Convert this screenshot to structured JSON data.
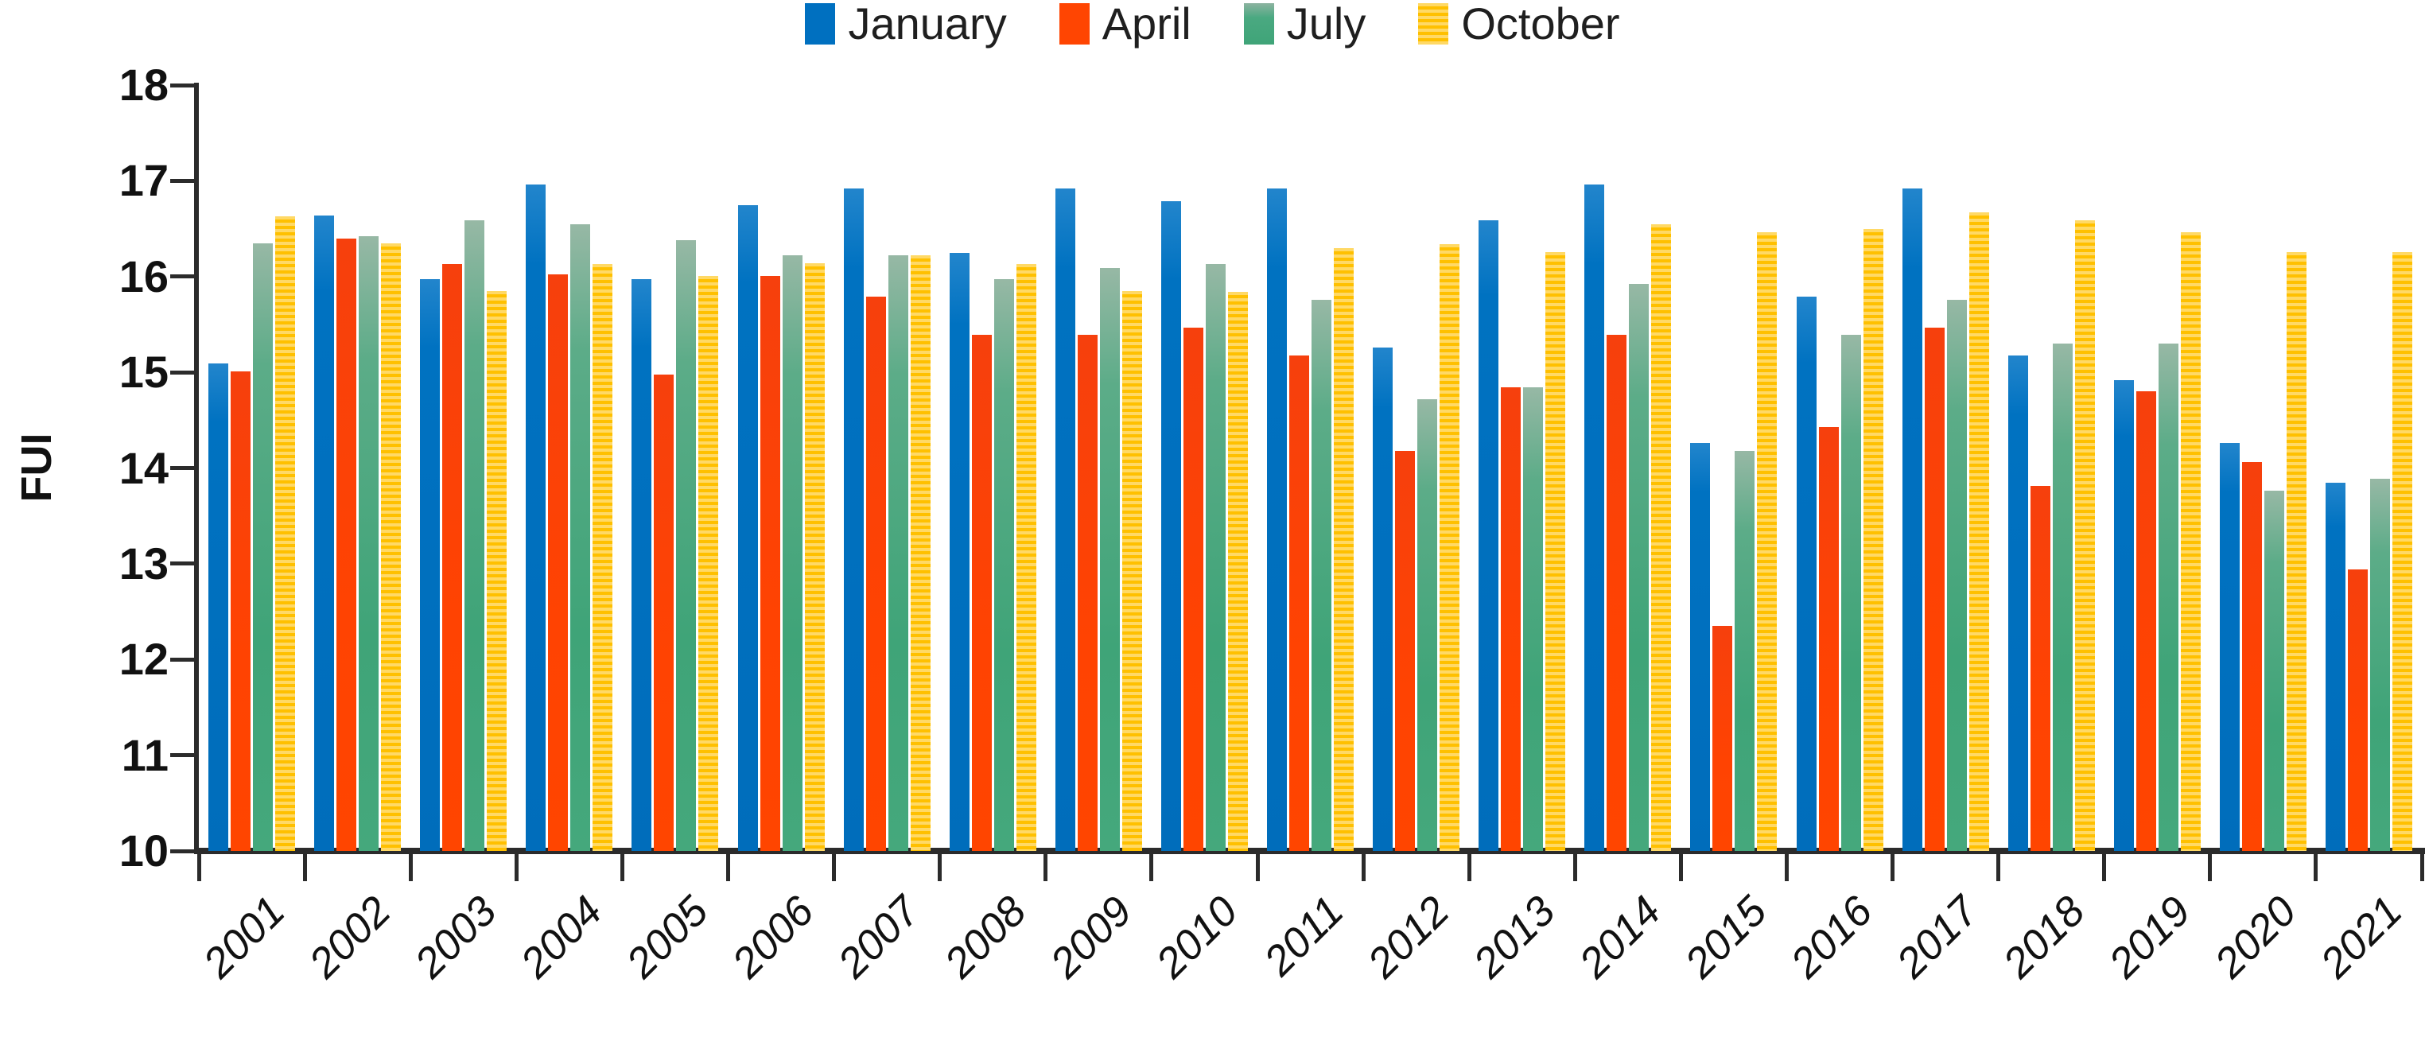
{
  "chart_data": {
    "type": "bar",
    "title": "",
    "xlabel": "",
    "ylabel": "FUI",
    "ylim": [
      10,
      18
    ],
    "ytick_step": 1,
    "yticks": [
      10,
      11,
      12,
      13,
      14,
      15,
      16,
      17,
      18
    ],
    "grid": false,
    "legend_position": "top-center",
    "categories": [
      "2001",
      "2002",
      "2003",
      "2004",
      "2005",
      "2006",
      "2007",
      "2008",
      "2009",
      "2010",
      "2011",
      "2012",
      "2013",
      "2014",
      "2015",
      "2016",
      "2017",
      "2018",
      "2019",
      "2020",
      "2021"
    ],
    "series": [
      {
        "name": "January",
        "color": "#0070C0",
        "pattern": "solid",
        "values": [
          15.09,
          16.64,
          15.97,
          16.96,
          15.97,
          16.75,
          16.92,
          16.25,
          16.92,
          16.79,
          16.92,
          15.26,
          16.59,
          16.96,
          14.26,
          15.79,
          16.92,
          15.18,
          14.92,
          14.26,
          13.85
        ]
      },
      {
        "name": "April",
        "color": "#FF4502",
        "pattern": "solid",
        "values": [
          15.01,
          16.4,
          16.13,
          16.02,
          14.98,
          16.01,
          15.79,
          15.39,
          15.39,
          15.47,
          15.18,
          14.18,
          14.84,
          15.39,
          12.35,
          14.43,
          15.47,
          13.81,
          14.8,
          14.06,
          12.94
        ]
      },
      {
        "name": "July",
        "color": "#44A87C",
        "pattern": "solid-gradient",
        "values": [
          16.35,
          16.42,
          16.59,
          16.55,
          16.38,
          16.22,
          16.22,
          15.97,
          16.09,
          16.13,
          15.76,
          14.72,
          14.84,
          15.92,
          14.18,
          15.39,
          15.76,
          15.3,
          15.3,
          13.76,
          13.89
        ]
      },
      {
        "name": "October",
        "color": "#FFC000",
        "pattern": "horizontal-stripes",
        "stripe_colors": [
          "#FFD966",
          "#FFC000"
        ],
        "values": [
          16.63,
          16.35,
          15.85,
          16.13,
          16.01,
          16.14,
          16.22,
          16.13,
          15.85,
          15.84,
          16.3,
          16.34,
          16.26,
          16.55,
          16.46,
          16.5,
          16.67,
          16.59,
          16.46,
          16.26,
          16.26
        ]
      }
    ]
  },
  "axis": {
    "y_label": "FUI",
    "axis_color": "#2B2B2B",
    "text_color": "#111111"
  }
}
